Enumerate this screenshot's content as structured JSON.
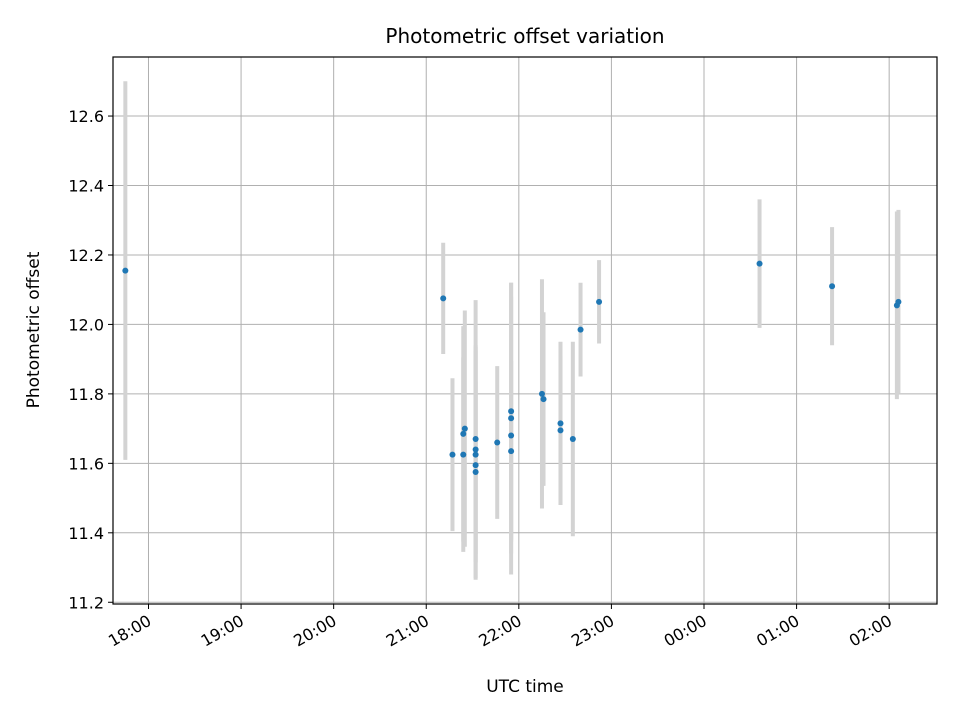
{
  "chart_data": {
    "type": "scatter",
    "title": "Photometric offset variation",
    "xlabel": "UTC time",
    "ylabel": "Photometric offset",
    "x_axis_kind": "time",
    "xlim": [
      "17:37",
      "02:31"
    ],
    "ylim": [
      11.195,
      12.77
    ],
    "grid": true,
    "xticks": [
      "18:00",
      "19:00",
      "20:00",
      "21:00",
      "22:00",
      "23:00",
      "00:00",
      "01:00",
      "02:00"
    ],
    "yticks": [
      "11.2",
      "11.4",
      "11.6",
      "11.8",
      "12.0",
      "12.2",
      "12.4",
      "12.6"
    ],
    "point_color": "#1f77b4",
    "errorbar_color": "#d3d3d3",
    "points": [
      {
        "x": "17:45",
        "y": 12.155,
        "err": 0.545
      },
      {
        "x": "21:11",
        "y": 12.075,
        "err": 0.16
      },
      {
        "x": "21:17",
        "y": 11.625,
        "err": 0.22
      },
      {
        "x": "21:24",
        "y": 11.625,
        "err": 0.28
      },
      {
        "x": "21:24",
        "y": 11.685,
        "err": 0.31
      },
      {
        "x": "21:25",
        "y": 11.7,
        "err": 0.34
      },
      {
        "x": "21:32",
        "y": 11.67,
        "err": 0.4
      },
      {
        "x": "21:32",
        "y": 11.64,
        "err": 0.3
      },
      {
        "x": "21:32",
        "y": 11.625,
        "err": 0.31
      },
      {
        "x": "21:32",
        "y": 11.595,
        "err": 0.33
      },
      {
        "x": "21:32",
        "y": 11.575,
        "err": 0.26
      },
      {
        "x": "21:46",
        "y": 11.66,
        "err": 0.22
      },
      {
        "x": "21:55",
        "y": 11.75,
        "err": 0.37
      },
      {
        "x": "21:55",
        "y": 11.73,
        "err": 0.39
      },
      {
        "x": "21:55",
        "y": 11.68,
        "err": 0.4
      },
      {
        "x": "21:55",
        "y": 11.635,
        "err": 0.26
      },
      {
        "x": "22:15",
        "y": 11.8,
        "err": 0.33
      },
      {
        "x": "22:16",
        "y": 11.785,
        "err": 0.25
      },
      {
        "x": "22:27",
        "y": 11.715,
        "err": 0.235
      },
      {
        "x": "22:27",
        "y": 11.695,
        "err": 0.215
      },
      {
        "x": "22:35",
        "y": 11.67,
        "err": 0.28
      },
      {
        "x": "22:40",
        "y": 11.985,
        "err": 0.135
      },
      {
        "x": "22:52",
        "y": 12.065,
        "err": 0.12
      },
      {
        "x": "00:36",
        "y": 12.175,
        "err": 0.185
      },
      {
        "x": "01:23",
        "y": 12.11,
        "err": 0.17
      },
      {
        "x": "02:05",
        "y": 12.055,
        "err": 0.27
      },
      {
        "x": "02:06",
        "y": 12.065,
        "err": 0.265
      }
    ]
  }
}
